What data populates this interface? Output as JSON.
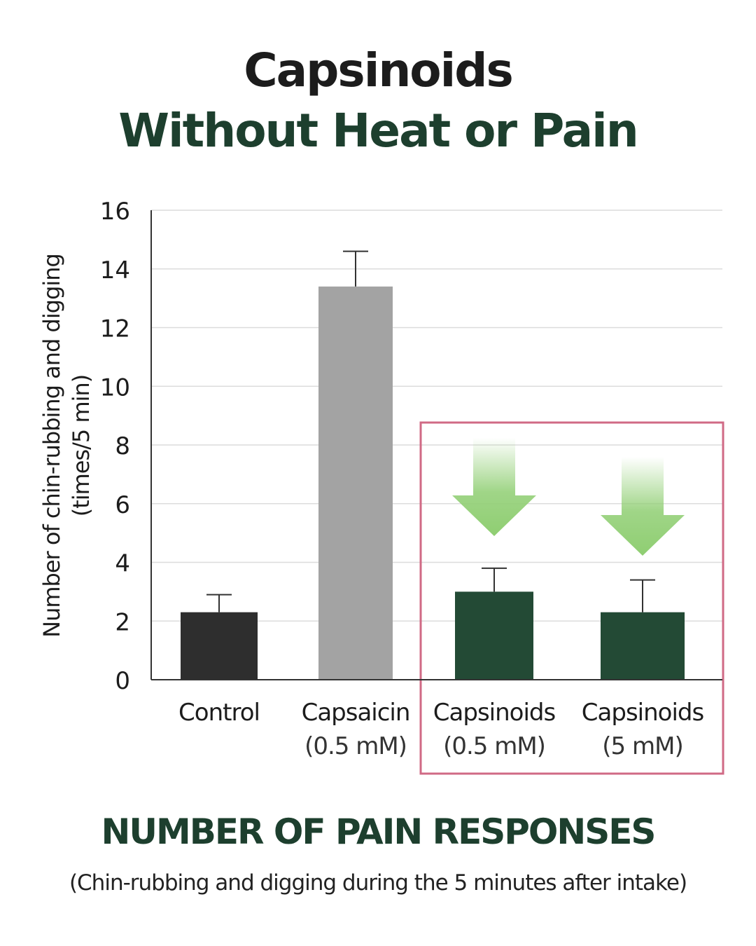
{
  "header": {
    "title_line1": "Capsinoids",
    "title_line2": "Without Heat or Pain"
  },
  "footer": {
    "caption": "NUMBER OF PAIN RESPONSES",
    "subcaption": "(Chin-rubbing and digging during the 5 minutes after intake)"
  },
  "colors": {
    "title_dark": "#1c1c1c",
    "title_green": "#1d3f2e",
    "control_bar": "#2e2e2e",
    "capsaicin_bar": "#a3a3a3",
    "capsinoid_bar": "#234a35",
    "highlight_box": "#d06a85",
    "arrow": "#8fce72"
  },
  "chart_data": {
    "type": "bar",
    "categories": [
      {
        "label": "Control",
        "sublabel": ""
      },
      {
        "label": "Capsaicin",
        "sublabel": "(0.5 mM)"
      },
      {
        "label": "Capsinoids",
        "sublabel": "(0.5 mM)"
      },
      {
        "label": "Capsinoids",
        "sublabel": "(5 mM)"
      }
    ],
    "values": [
      2.3,
      13.4,
      3.0,
      2.3
    ],
    "error_upper": [
      2.9,
      14.6,
      3.8,
      3.4
    ],
    "ylabel_line1": "Number of chin-rubbing and digging",
    "ylabel_line2": "(times/5 min)",
    "xlabel": "",
    "ylim": [
      0,
      16
    ],
    "yticks": [
      0,
      2,
      4,
      6,
      8,
      10,
      12,
      14,
      16
    ],
    "grid": true,
    "highlight": {
      "categories": [
        2,
        3
      ],
      "arrows": true
    }
  }
}
